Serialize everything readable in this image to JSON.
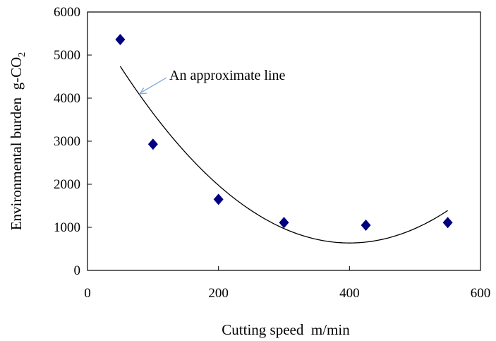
{
  "chart_data": {
    "type": "scatter",
    "title": "",
    "xlabel": "Cutting speed  m/min",
    "ylabel_main": "Environmental burden  g-CO",
    "ylabel_subscript": "2",
    "xlim": [
      0,
      600
    ],
    "ylim": [
      0,
      6000
    ],
    "x_ticks": [
      "0",
      "200",
      "400",
      "600"
    ],
    "y_ticks": [
      "0",
      "1000",
      "2000",
      "3000",
      "4000",
      "5000",
      "6000"
    ],
    "grid": false,
    "legend": "none",
    "marker_color": "#000080",
    "line_color": "#000000",
    "arrow_color": "#7ea6d8",
    "series": [
      {
        "marker": "diamond",
        "x": [
          50,
          100,
          200,
          300,
          425,
          550
        ],
        "y": [
          5360,
          2930,
          1650,
          1110,
          1050,
          1110
        ]
      }
    ],
    "trendline": {
      "type": "polynomial",
      "order": 2,
      "x_range": [
        50,
        550
      ],
      "approx_y_at_x": {
        "50": 4740,
        "390": 640,
        "550": 1390
      }
    },
    "annotations": [
      {
        "text": "An approximate line",
        "points_to": {
          "x": 80,
          "y": 4100
        }
      }
    ]
  }
}
